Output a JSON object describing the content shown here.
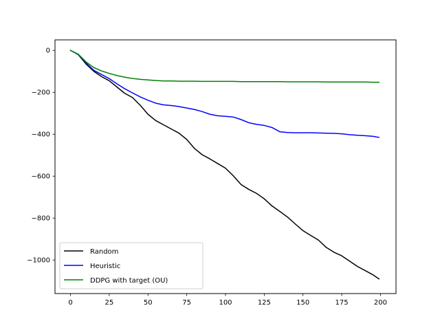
{
  "chart_data": {
    "type": "line",
    "title": "",
    "xlabel": "",
    "ylabel": "",
    "xlim": [
      -10,
      210
    ],
    "ylim": [
      -1160,
      50
    ],
    "grid": false,
    "legend_position": "lower-left",
    "x_ticks": [
      0,
      25,
      50,
      75,
      100,
      125,
      150,
      175,
      200
    ],
    "y_ticks": [
      0,
      -200,
      -400,
      -600,
      -800,
      -1000
    ],
    "x_tick_labels": [
      "0",
      "25",
      "50",
      "75",
      "100",
      "125",
      "150",
      "175",
      "200"
    ],
    "y_tick_labels": [
      "0",
      "−200",
      "−400",
      "−600",
      "−800",
      "−1000"
    ],
    "x": [
      0,
      5,
      10,
      15,
      20,
      25,
      30,
      35,
      40,
      45,
      50,
      55,
      60,
      65,
      70,
      75,
      80,
      85,
      90,
      95,
      100,
      105,
      110,
      115,
      120,
      125,
      130,
      135,
      140,
      145,
      150,
      155,
      160,
      165,
      170,
      175,
      180,
      185,
      190,
      195,
      199
    ],
    "series": [
      {
        "name": "Random",
        "color": "#000000",
        "values": [
          0,
          -20,
          -65,
          -100,
          -125,
          -145,
          -175,
          -205,
          -225,
          -262,
          -305,
          -335,
          -355,
          -375,
          -395,
          -425,
          -468,
          -498,
          -518,
          -540,
          -562,
          -598,
          -640,
          -663,
          -682,
          -708,
          -742,
          -768,
          -795,
          -828,
          -860,
          -883,
          -905,
          -940,
          -963,
          -980,
          -1005,
          -1030,
          -1050,
          -1070,
          -1090
        ]
      },
      {
        "name": "Heuristic",
        "color": "#0000ff",
        "values": [
          0,
          -20,
          -60,
          -95,
          -115,
          -135,
          -160,
          -183,
          -203,
          -222,
          -238,
          -252,
          -260,
          -263,
          -268,
          -275,
          -282,
          -292,
          -305,
          -312,
          -315,
          -318,
          -330,
          -345,
          -353,
          -358,
          -368,
          -388,
          -392,
          -393,
          -393,
          -393,
          -394,
          -395,
          -396,
          -398,
          -402,
          -405,
          -407,
          -410,
          -415
        ]
      },
      {
        "name": "DDPG with target (OU)",
        "color": "#008000",
        "values": [
          0,
          -18,
          -55,
          -82,
          -98,
          -110,
          -120,
          -128,
          -134,
          -138,
          -141,
          -144,
          -146,
          -146,
          -147,
          -147,
          -147,
          -148,
          -148,
          -148,
          -148,
          -148,
          -149,
          -149,
          -149,
          -149,
          -149,
          -149,
          -150,
          -150,
          -150,
          -150,
          -150,
          -151,
          -151,
          -151,
          -151,
          -151,
          -151,
          -152,
          -152
        ]
      }
    ]
  }
}
